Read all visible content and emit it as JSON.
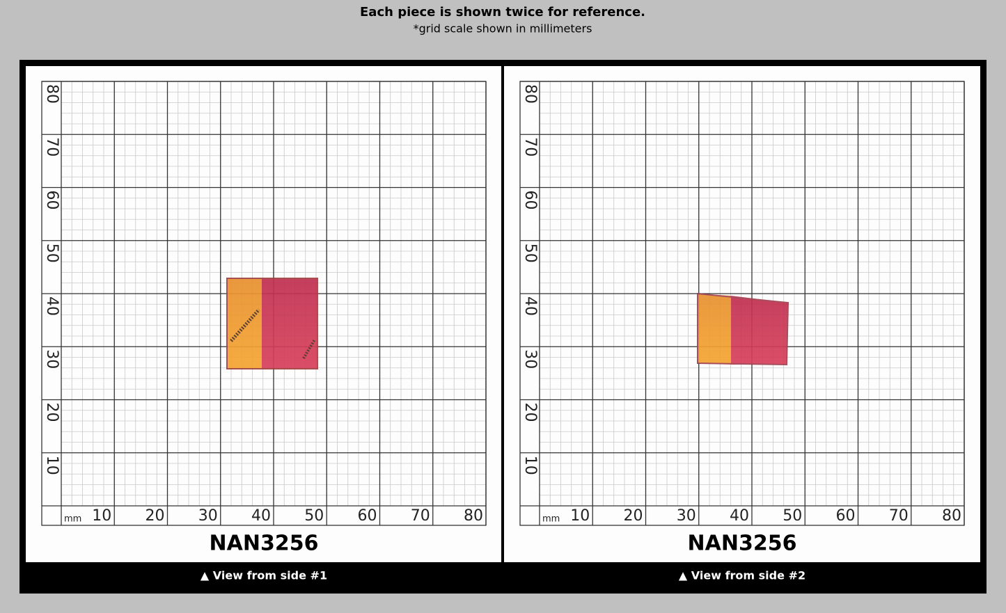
{
  "header": {
    "title": "Each piece is shown twice for reference.",
    "subtitle": "*grid scale shown in millimeters"
  },
  "panels": [
    {
      "unit": "mm",
      "xticks": [
        10,
        20,
        30,
        40,
        50,
        60,
        70,
        80
      ],
      "yticks": [
        10,
        20,
        30,
        40,
        50,
        60,
        70,
        80
      ],
      "code": "NAN3256",
      "caption": "▲ View from side #1"
    },
    {
      "unit": "mm",
      "xticks": [
        10,
        20,
        30,
        40,
        50,
        60,
        70,
        80
      ],
      "yticks": [
        10,
        20,
        30,
        40,
        50,
        60,
        70,
        80
      ],
      "code": "NAN3256",
      "caption": "▲ View from side #2"
    }
  ]
}
